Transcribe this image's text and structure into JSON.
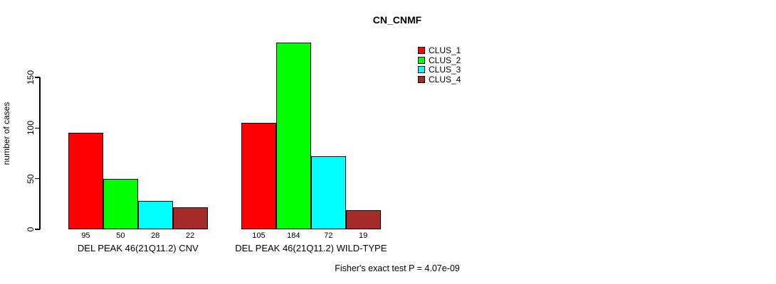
{
  "chart_data": {
    "type": "bar",
    "title": "CN_CNMF",
    "ylabel": "number of cases",
    "xlabel": "",
    "ylim": [
      0,
      191
    ],
    "yticks": [
      0,
      50,
      100,
      150
    ],
    "grid": false,
    "legend_position": "right-outside-top",
    "categories": [
      "DEL PEAK 46(21Q11.2) CNV",
      "DEL PEAK 46(21Q11.2) WILD-TYPE"
    ],
    "series": [
      {
        "name": "CLUS_1",
        "color": "#FF0000",
        "values": [
          95,
          105
        ]
      },
      {
        "name": "CLUS_2",
        "color": "#00FF00",
        "values": [
          50,
          184
        ]
      },
      {
        "name": "CLUS_3",
        "color": "#00FFFF",
        "values": [
          28,
          72
        ]
      },
      {
        "name": "CLUS_4",
        "color": "#A52A2A",
        "values": [
          22,
          19
        ]
      }
    ],
    "bar_value_labels": true,
    "annotation": "Fisher's exact test P = 4.07e-09"
  },
  "colors": {
    "background": "#FFFFFF",
    "text": "#000000",
    "axis": "#000000",
    "bar_border": "#000000"
  }
}
